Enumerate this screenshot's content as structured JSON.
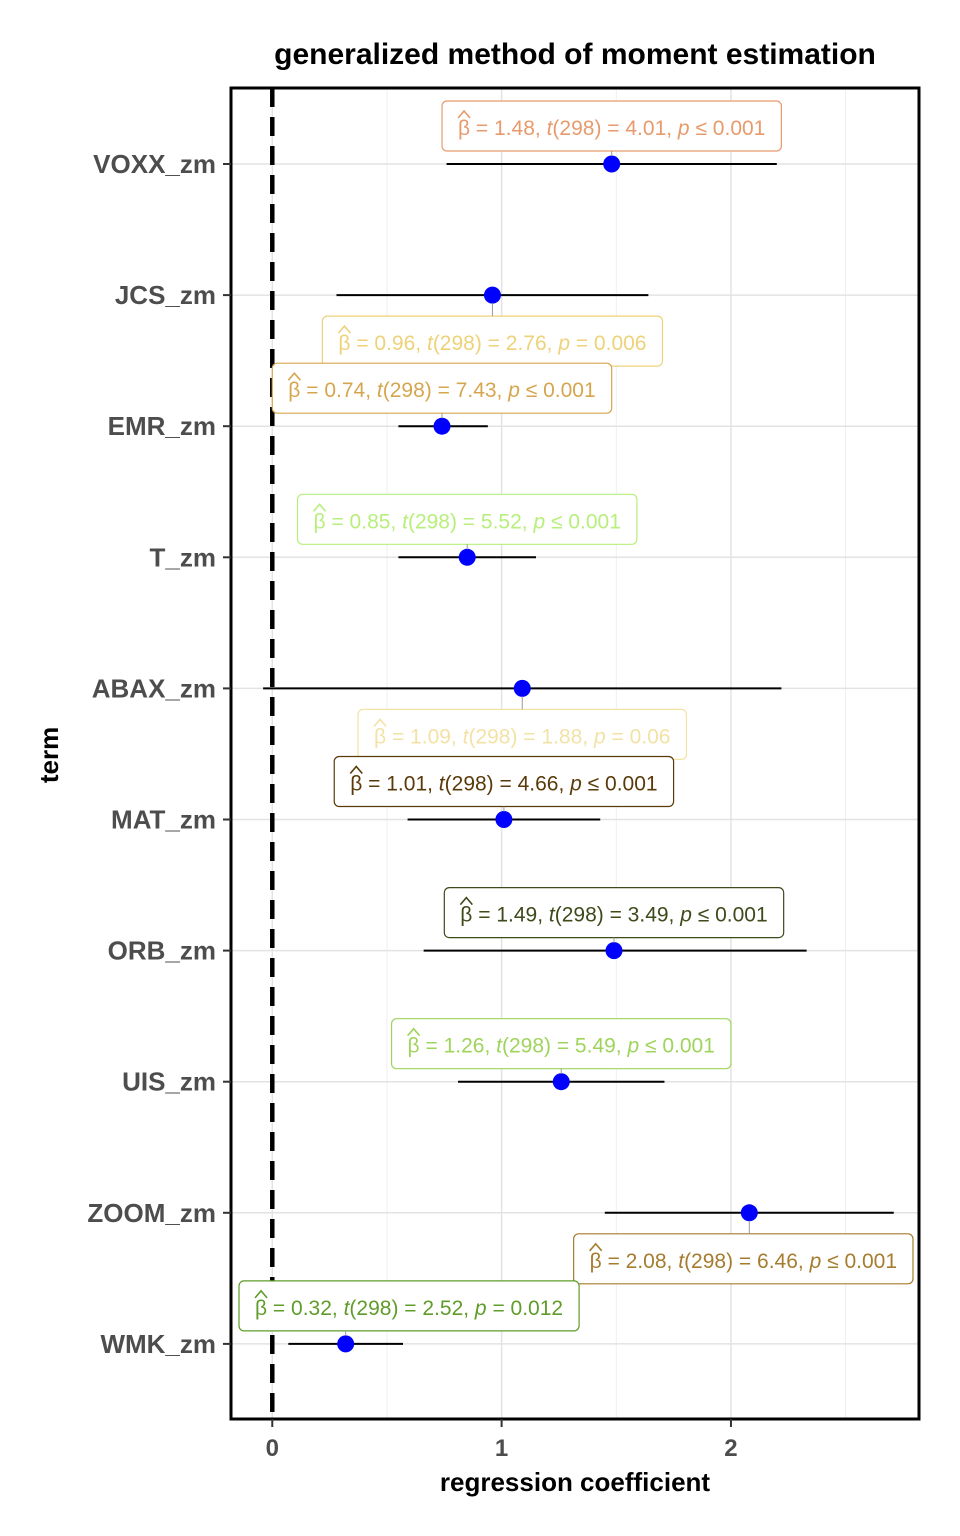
{
  "chart_data": {
    "type": "scatter",
    "title": "generalized method of moment estimation",
    "xlabel": "regression coefficient",
    "ylabel": "term",
    "xlim": [
      -0.18,
      2.82
    ],
    "x_ticks": [
      "0",
      "1",
      "2"
    ],
    "x_tick_values": [
      0,
      1,
      2
    ],
    "reference_line": 0,
    "grid": true,
    "point_color": "#0000ff",
    "terms": [
      {
        "term": "VOXX_zm",
        "estimate": 1.48,
        "conf_low": 0.76,
        "conf_high": 2.2,
        "label_color": "#e89a6c",
        "label_position": "above",
        "label": {
          "beta": "1.48",
          "df": "298",
          "t": "4.01",
          "p_op": "≤",
          "p": "0.001"
        }
      },
      {
        "term": "JCS_zm",
        "estimate": 0.96,
        "conf_low": 0.28,
        "conf_high": 1.64,
        "label_color": "#eed27a",
        "label_position": "below",
        "label": {
          "beta": "0.96",
          "df": "298",
          "t": "2.76",
          "p_op": "=",
          "p": "0.006"
        }
      },
      {
        "term": "EMR_zm",
        "estimate": 0.74,
        "conf_low": 0.55,
        "conf_high": 0.94,
        "label_color": "#d6a64f",
        "label_position": "above",
        "label": {
          "beta": "0.74",
          "df": "298",
          "t": "7.43",
          "p_op": "≤",
          "p": "0.001"
        }
      },
      {
        "term": "T_zm",
        "estimate": 0.85,
        "conf_low": 0.55,
        "conf_high": 1.15,
        "label_color": "#b8ef7c",
        "label_position": "above",
        "label": {
          "beta": "0.85",
          "df": "298",
          "t": "5.52",
          "p_op": "≤",
          "p": "0.001"
        }
      },
      {
        "term": "ABAX_zm",
        "estimate": 1.09,
        "conf_low": -0.04,
        "conf_high": 2.22,
        "label_color": "#f3e2a6",
        "label_position": "below",
        "label": {
          "beta": "1.09",
          "df": "298",
          "t": "1.88",
          "p_op": "=",
          "p": "0.06"
        }
      },
      {
        "term": "MAT_zm",
        "estimate": 1.01,
        "conf_low": 0.59,
        "conf_high": 1.43,
        "label_color": "#5a3a0a",
        "label_position": "above",
        "label": {
          "beta": "1.01",
          "df": "298",
          "t": "4.66",
          "p_op": "≤",
          "p": "0.001"
        }
      },
      {
        "term": "ORB_zm",
        "estimate": 1.49,
        "conf_low": 0.66,
        "conf_high": 2.33,
        "label_color": "#3d4a1a",
        "label_position": "above",
        "label": {
          "beta": "1.49",
          "df": "298",
          "t": "3.49",
          "p_op": "≤",
          "p": "0.001"
        }
      },
      {
        "term": "UIS_zm",
        "estimate": 1.26,
        "conf_low": 0.81,
        "conf_high": 1.71,
        "label_color": "#9fd45c",
        "label_position": "above",
        "label": {
          "beta": "1.26",
          "df": "298",
          "t": "5.49",
          "p_op": "≤",
          "p": "0.001"
        }
      },
      {
        "term": "ZOOM_zm",
        "estimate": 2.08,
        "conf_low": 1.45,
        "conf_high": 2.71,
        "label_color": "#a67c2e",
        "label_position": "below",
        "label": {
          "beta": "2.08",
          "df": "298",
          "t": "6.46",
          "p_op": "≤",
          "p": "0.001"
        }
      },
      {
        "term": "WMK_zm",
        "estimate": 0.32,
        "conf_low": 0.07,
        "conf_high": 0.57,
        "label_color": "#5f9c2a",
        "label_position": "above",
        "label": {
          "beta": "0.32",
          "df": "298",
          "t": "2.52",
          "p_op": "=",
          "p": "0.012"
        }
      }
    ]
  }
}
